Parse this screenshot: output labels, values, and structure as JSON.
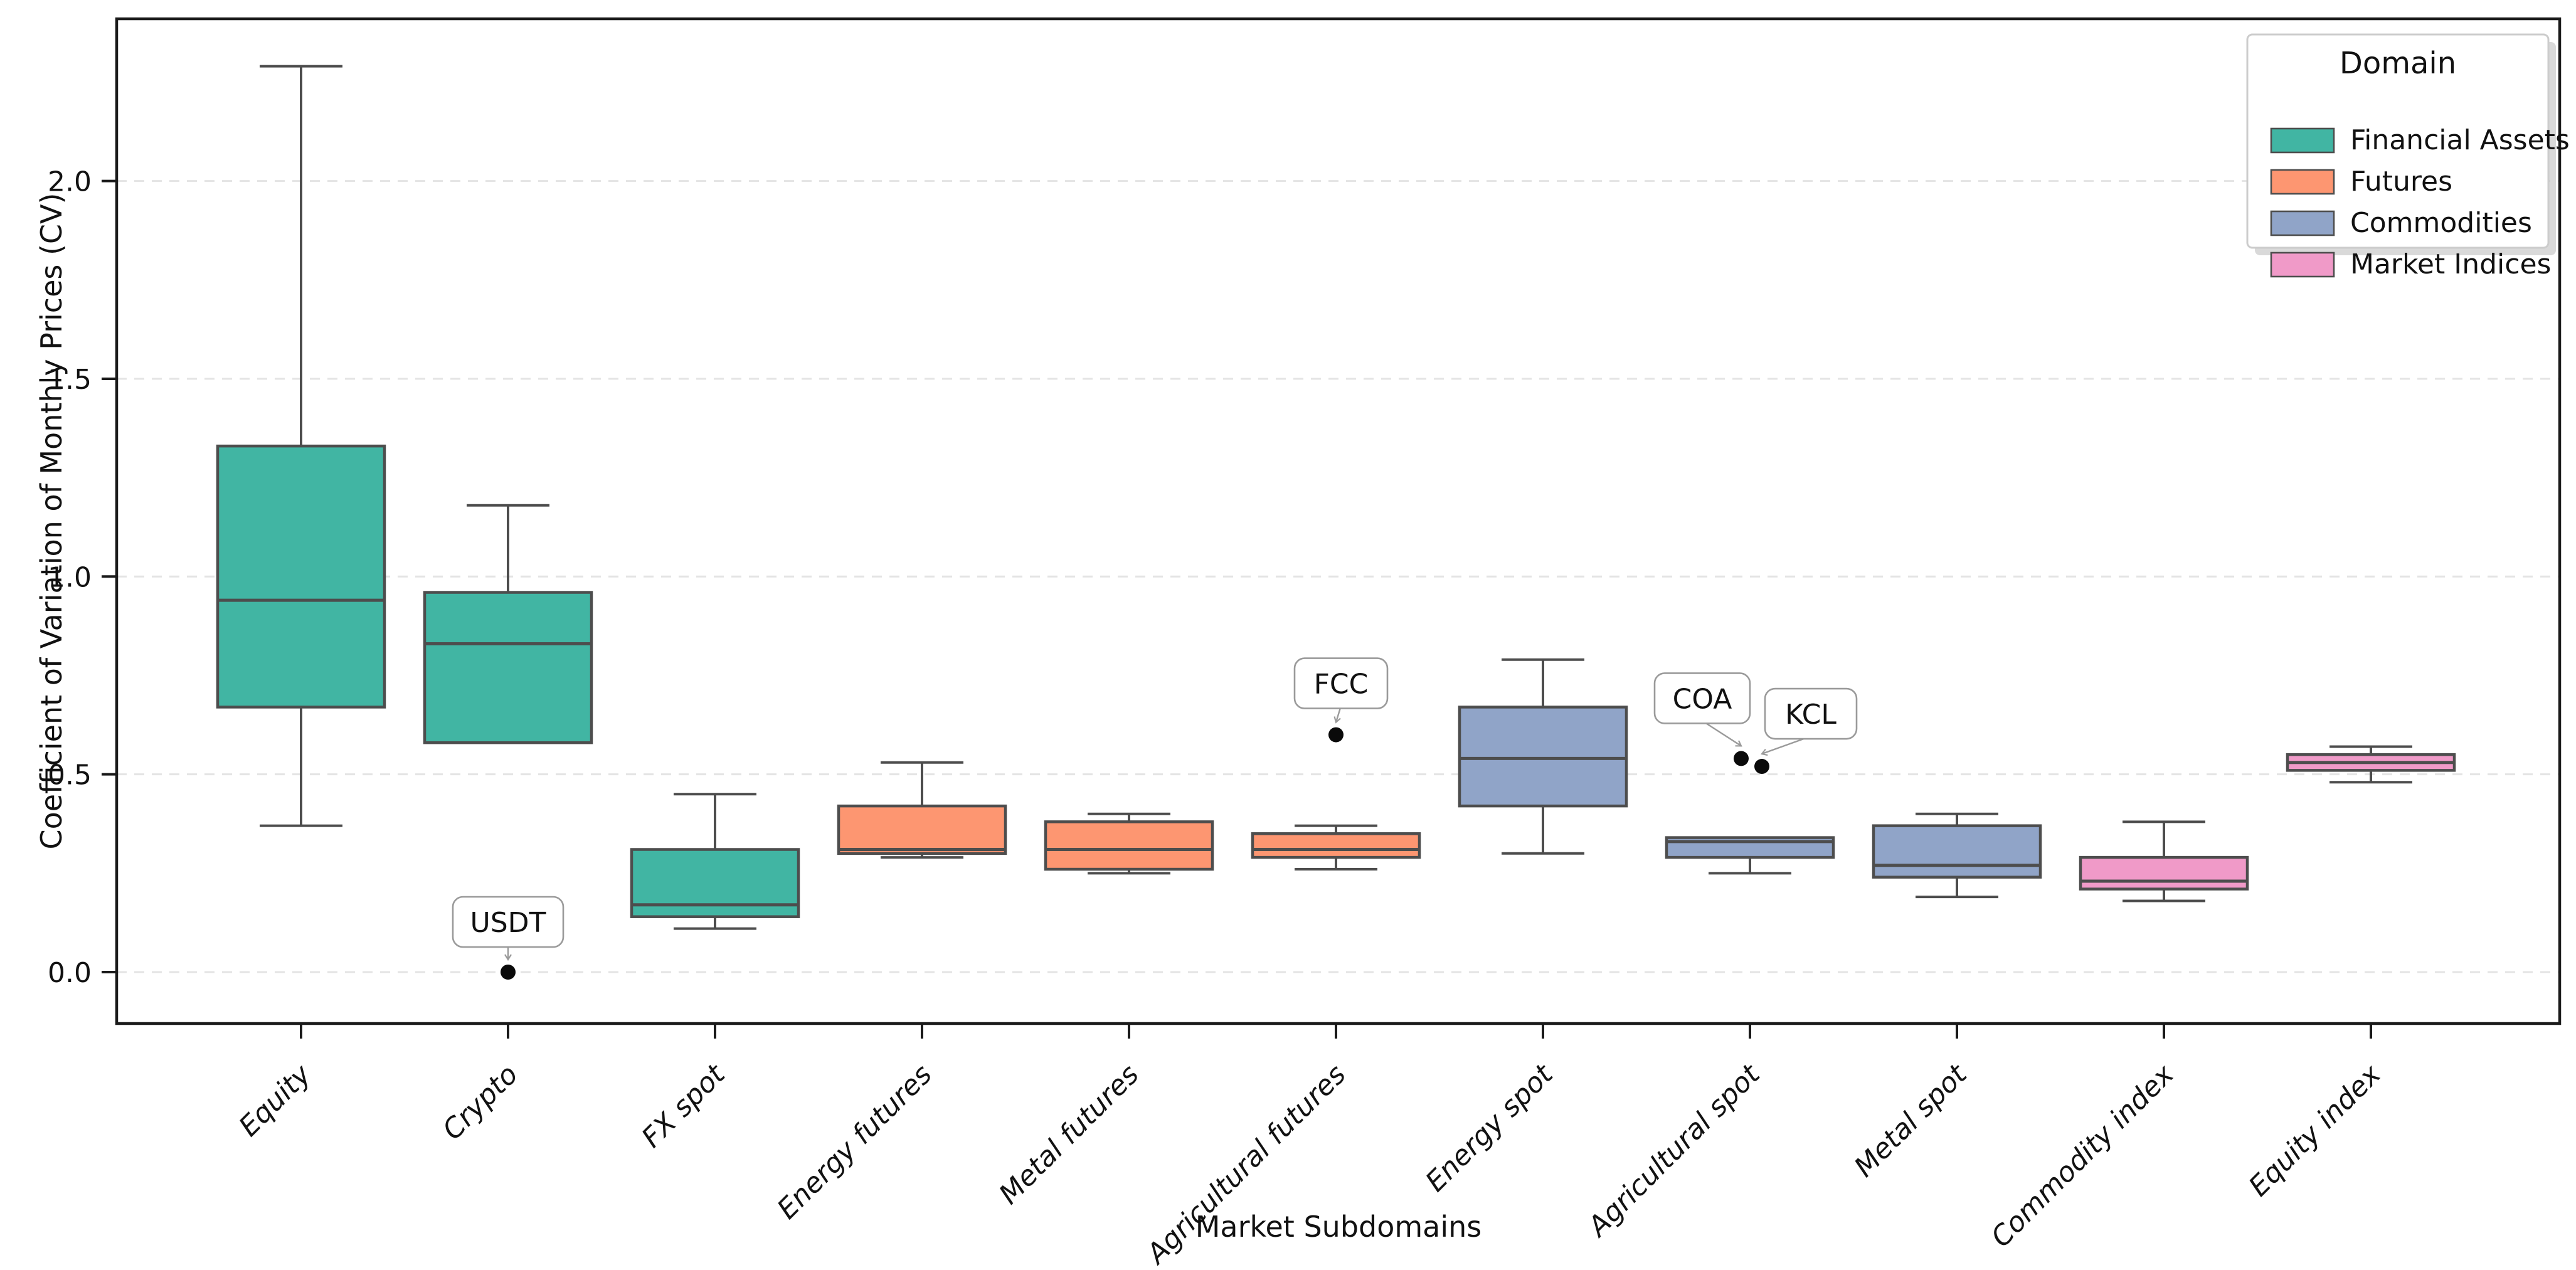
{
  "chart_data": {
    "type": "box",
    "title": "",
    "xlabel": "Market Subdomains",
    "ylabel": "Coefficient of Variation of Monthly Prices (CV)",
    "ylim": [
      -0.13,
      2.41
    ],
    "yticks": [
      0.0,
      0.5,
      1.0,
      1.5,
      2.0
    ],
    "ytick_labels": [
      "0.0",
      "0.5",
      "1.0",
      "1.5",
      "2.0"
    ],
    "grid": "horizontal dashed gridlines at y ticks",
    "legend_position": "upper right",
    "categories": [
      {
        "label": "Equity",
        "domain": "Financial Assets",
        "whislo": 0.37,
        "q1": 0.67,
        "med": 0.94,
        "q3": 1.33,
        "whishi": 2.29,
        "outliers": []
      },
      {
        "label": "Crypto",
        "domain": "Financial Assets",
        "whislo": 0.58,
        "q1": 0.58,
        "med": 0.83,
        "q3": 0.96,
        "whishi": 1.18,
        "outliers": [
          {
            "label": "USDT",
            "value": 0.0
          }
        ]
      },
      {
        "label": "FX spot",
        "domain": "Financial Assets",
        "whislo": 0.11,
        "q1": 0.14,
        "med": 0.17,
        "q3": 0.31,
        "whishi": 0.45,
        "outliers": []
      },
      {
        "label": "Energy futures",
        "domain": "Futures",
        "whislo": 0.29,
        "q1": 0.3,
        "med": 0.31,
        "q3": 0.42,
        "whishi": 0.53,
        "outliers": []
      },
      {
        "label": "Metal futures",
        "domain": "Futures",
        "whislo": 0.25,
        "q1": 0.26,
        "med": 0.31,
        "q3": 0.38,
        "whishi": 0.4,
        "outliers": []
      },
      {
        "label": "Agricultural futures",
        "domain": "Futures",
        "whislo": 0.26,
        "q1": 0.29,
        "med": 0.31,
        "q3": 0.35,
        "whishi": 0.37,
        "outliers": [
          {
            "label": "FCC",
            "value": 0.6
          }
        ]
      },
      {
        "label": "Energy spot",
        "domain": "Commodities",
        "whislo": 0.3,
        "q1": 0.42,
        "med": 0.54,
        "q3": 0.67,
        "whishi": 0.79,
        "outliers": []
      },
      {
        "label": "Agricultural spot",
        "domain": "Commodities",
        "whislo": 0.25,
        "q1": 0.29,
        "med": 0.33,
        "q3": 0.34,
        "whishi": 0.34,
        "outliers": [
          {
            "label": "COA",
            "value": 0.54
          },
          {
            "label": "KCL",
            "value": 0.52
          }
        ]
      },
      {
        "label": "Metal spot",
        "domain": "Commodities",
        "whislo": 0.19,
        "q1": 0.24,
        "med": 0.27,
        "q3": 0.37,
        "whishi": 0.4,
        "outliers": []
      },
      {
        "label": "Commodity index",
        "domain": "Market Indices",
        "whislo": 0.18,
        "q1": 0.21,
        "med": 0.23,
        "q3": 0.29,
        "whishi": 0.38,
        "outliers": []
      },
      {
        "label": "Equity index",
        "domain": "Market Indices",
        "whislo": 0.48,
        "q1": 0.51,
        "med": 0.53,
        "q3": 0.55,
        "whishi": 0.57,
        "outliers": []
      }
    ],
    "legend": {
      "title": "Domain",
      "entries": [
        {
          "label": "Financial Assets",
          "color": "#41b5a3"
        },
        {
          "label": "Futures",
          "color": "#fd9671"
        },
        {
          "label": "Commodities",
          "color": "#90a4c8"
        },
        {
          "label": "Market Indices",
          "color": "#f09ac8"
        }
      ]
    },
    "annotations": [
      "USDT",
      "FCC",
      "COA",
      "KCL"
    ],
    "style_colors": {
      "box_edge": "#4d4d4d",
      "whisker": "#4d4d4d",
      "outlier_dot": "#0a0a0a",
      "gridline": "#e4e4e4",
      "spine": "#1a1a1a",
      "annotation_border": "#9a9a9a",
      "annotation_bg": "#ffffff",
      "legend_border": "#cccccc",
      "legend_bg": "#ffffff"
    }
  }
}
